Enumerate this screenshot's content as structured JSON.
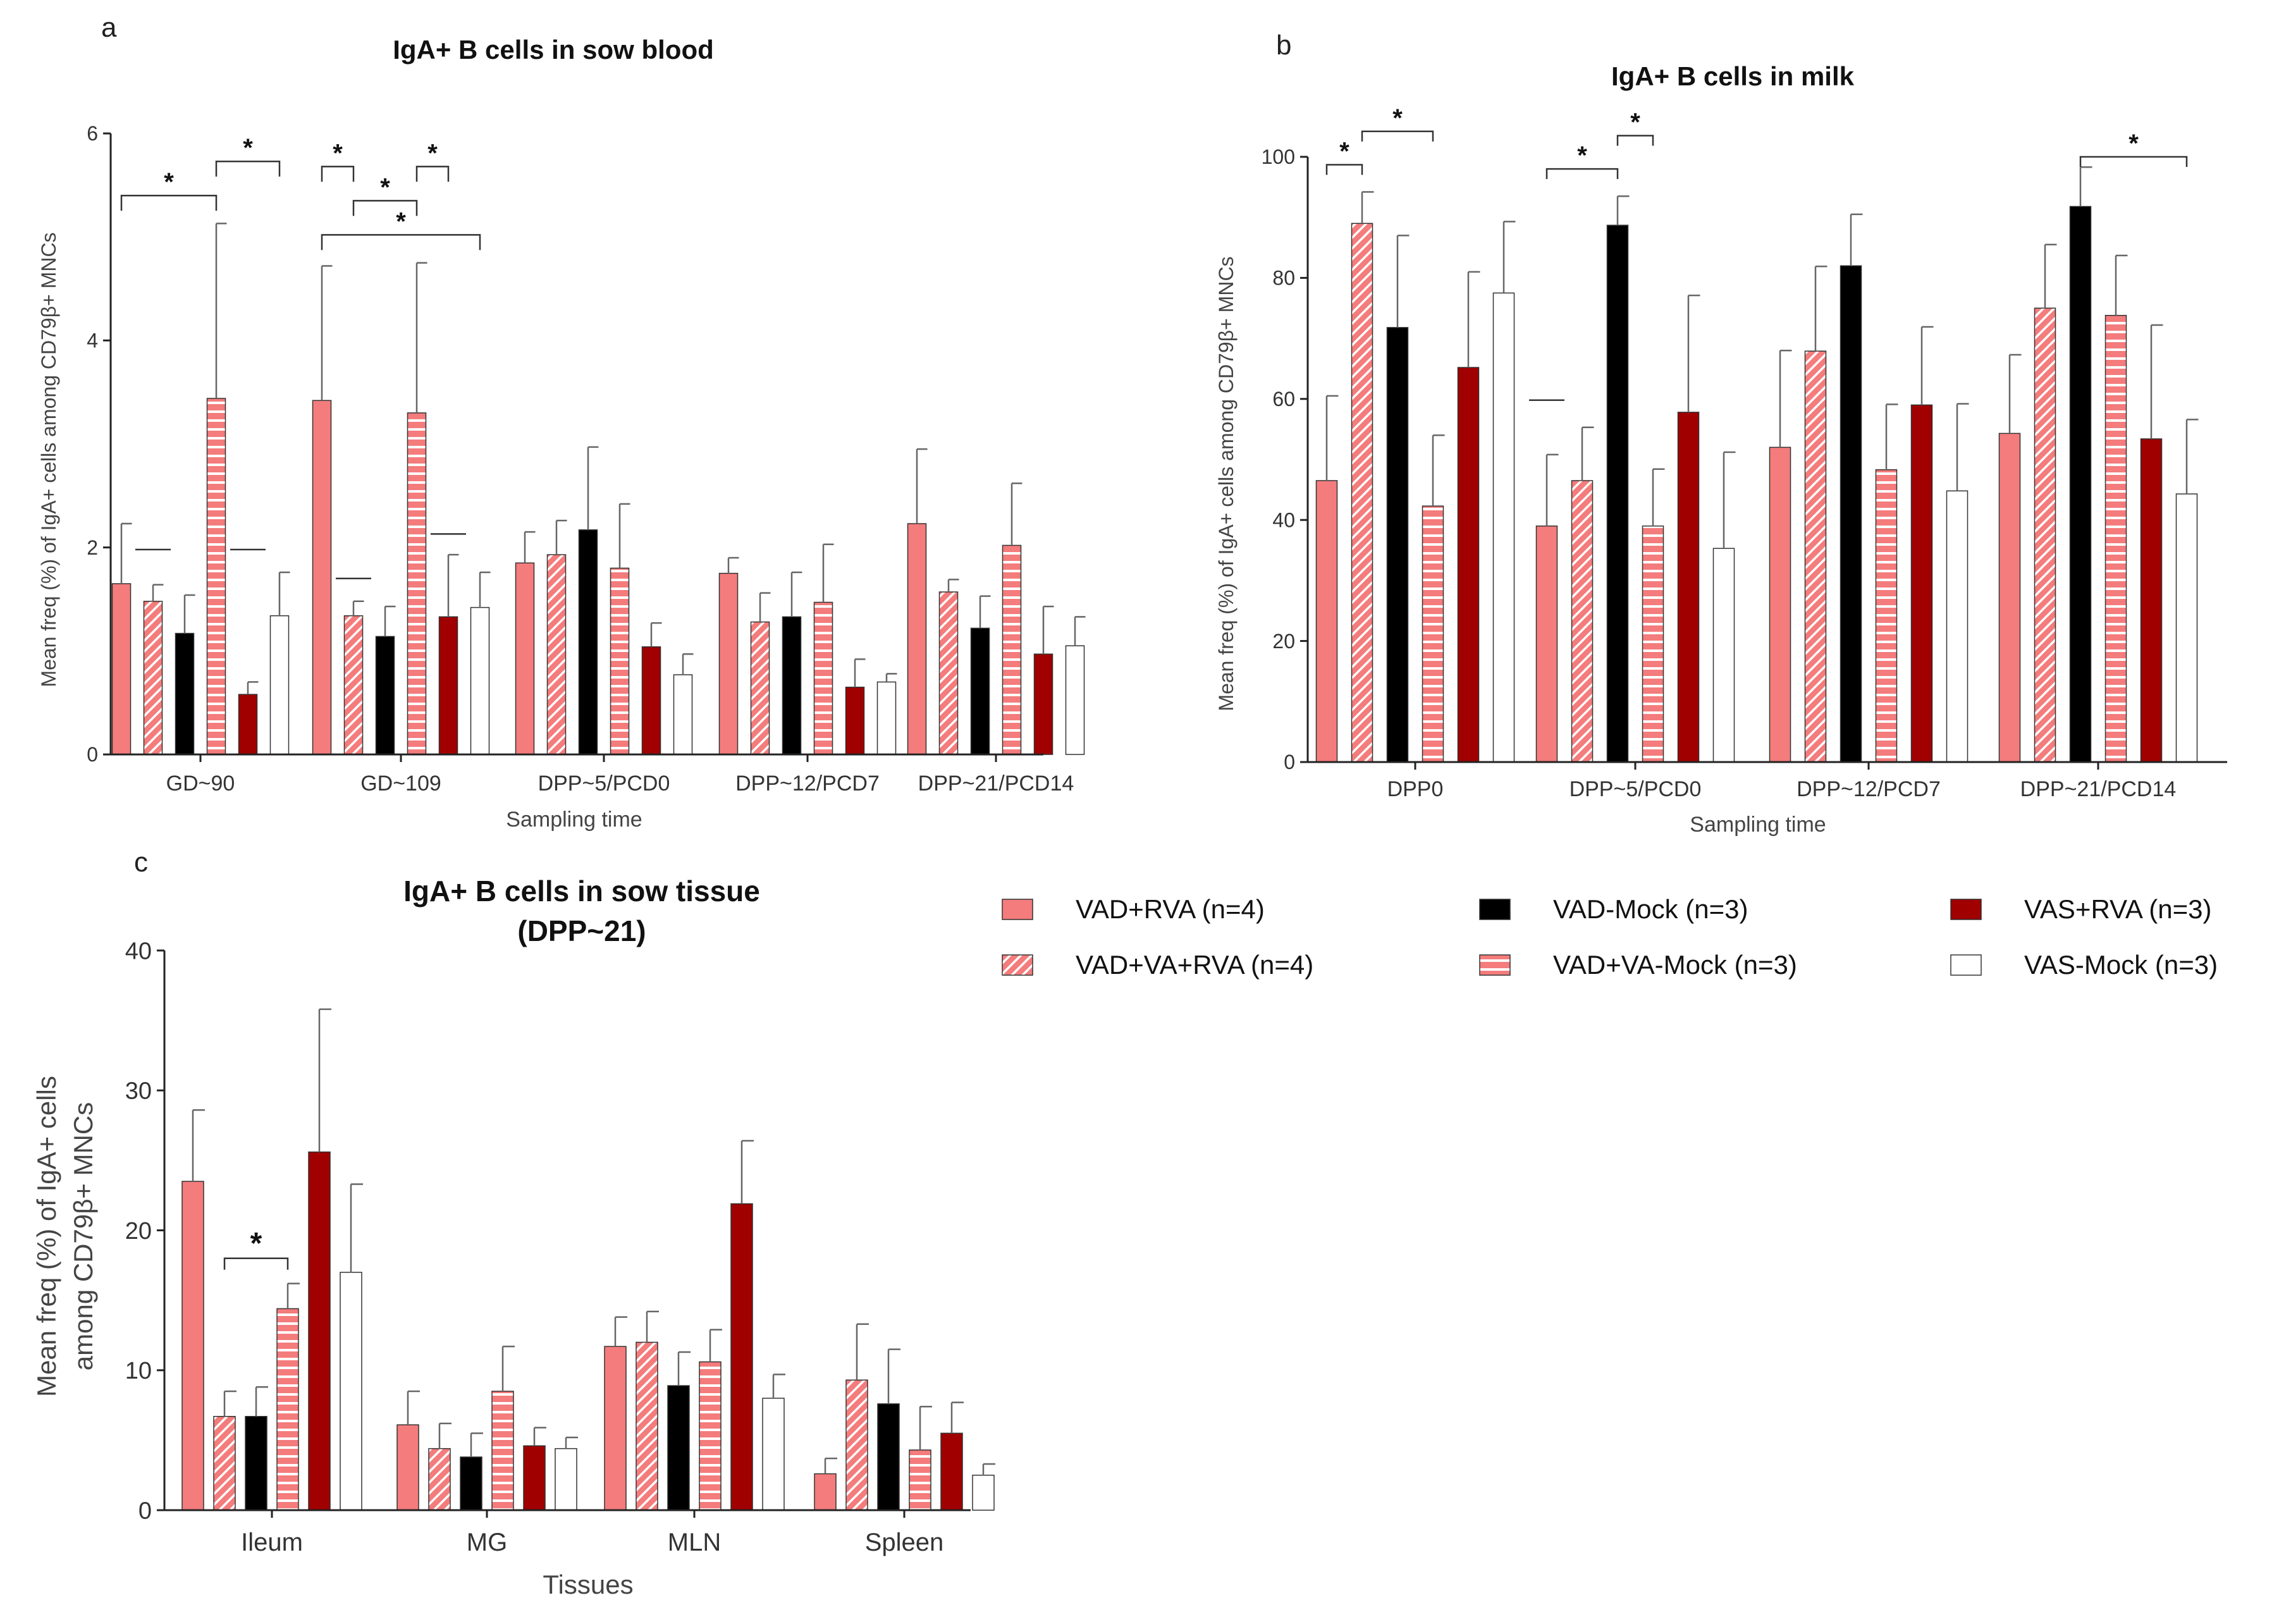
{
  "colors": {
    "salmon": "#F47C7C",
    "black": "#000000",
    "darkred": "#A00000",
    "white": "#FFFFFF",
    "edge": "#333333",
    "error": "#666666"
  },
  "legend": [
    {
      "label": "VAD+RVA (n=4)",
      "fill": "salmon",
      "pattern": "solid"
    },
    {
      "label": "VAD-Mock (n=3)",
      "fill": "black",
      "pattern": "solid"
    },
    {
      "label": "VAS+RVA (n=3)",
      "fill": "darkred",
      "pattern": "solid"
    },
    {
      "label": "VAD+VA+RVA (n=4)",
      "fill": "salmon",
      "pattern": "diagonal"
    },
    {
      "label": "VAD+VA-Mock (n=3)",
      "fill": "salmon",
      "pattern": "horizontal"
    },
    {
      "label": "VAS-Mock (n=3)",
      "fill": "white",
      "pattern": "solid"
    }
  ],
  "chart_data": [
    {
      "panel": "a",
      "type": "bar",
      "title": "IgA+ B cells in sow blood",
      "xlabel": "Sampling time",
      "ylabel": "Mean freq (%) of IgA+ cells among CD79β+ MNCs",
      "ylim": [
        0,
        6
      ],
      "yticks": [
        0,
        2,
        4,
        6
      ],
      "categories": [
        "GD~90",
        "GD~109",
        "DPP~5/PCD0",
        "DPP~12/PCD7",
        "DPP~21/PCD14"
      ],
      "series": [
        {
          "name": "VAD+RVA (n=4)",
          "values": [
            1.65,
            3.42,
            1.85,
            1.75,
            2.23
          ],
          "errors": [
            0.58,
            1.3,
            0.3,
            0.15,
            0.72
          ]
        },
        {
          "name": "VAD+VA+RVA (n=4)",
          "values": [
            1.48,
            1.34,
            1.93,
            1.28,
            1.57
          ],
          "errors": [
            0.16,
            0.14,
            0.33,
            0.28,
            0.12
          ]
        },
        {
          "name": "VAD-Mock (n=3)",
          "values": [
            1.17,
            1.14,
            2.17,
            1.33,
            1.22
          ],
          "errors": [
            0.37,
            0.29,
            0.8,
            0.43,
            0.31
          ]
        },
        {
          "name": "VAD+VA-Mock (n=3)",
          "values": [
            3.44,
            3.3,
            1.8,
            1.47,
            2.02
          ],
          "errors": [
            1.69,
            1.45,
            0.62,
            0.56,
            0.6
          ]
        },
        {
          "name": "VAS+RVA (n=3)",
          "values": [
            0.58,
            1.33,
            1.04,
            0.65,
            0.97
          ],
          "errors": [
            0.12,
            0.6,
            0.23,
            0.27,
            0.46
          ]
        },
        {
          "name": "VAS-Mock (n=3)",
          "values": [
            1.34,
            1.42,
            0.77,
            0.7,
            1.05
          ],
          "errors": [
            0.42,
            0.34,
            0.2,
            0.08,
            0.28
          ]
        }
      ],
      "significance": [
        {
          "from": [
            0,
            0
          ],
          "to": [
            0,
            3
          ],
          "label": "*"
        },
        {
          "from": [
            0,
            3
          ],
          "to": [
            0,
            5
          ],
          "label": "*"
        },
        {
          "from": [
            1,
            0
          ],
          "to": [
            1,
            5
          ],
          "label": "*"
        },
        {
          "from": [
            1,
            1
          ],
          "to": [
            1,
            3
          ],
          "label": "*"
        },
        {
          "from": [
            1,
            0
          ],
          "to": [
            1,
            1
          ],
          "label": "*"
        },
        {
          "from": [
            1,
            3
          ],
          "to": [
            1,
            4
          ],
          "label": "*"
        }
      ],
      "dashes": [
        {
          "group": 0,
          "bar": 1,
          "value": 1.98
        },
        {
          "group": 0,
          "bar": 4,
          "value": 1.98
        },
        {
          "group": 1,
          "bar": 1,
          "value": 1.7
        },
        {
          "group": 1,
          "bar": 4,
          "value": 2.13
        }
      ]
    },
    {
      "panel": "b",
      "type": "bar",
      "title": "IgA+ B cells in milk",
      "xlabel": "Sampling time",
      "ylabel": "Mean freq (%) of IgA+ cells among CD79β+ MNCs",
      "ylim": [
        0,
        100
      ],
      "yticks": [
        0,
        20,
        40,
        60,
        80,
        100
      ],
      "categories": [
        "DPP0",
        "DPP~5/PCD0",
        "DPP~12/PCD7",
        "DPP~21/PCD14"
      ],
      "series": [
        {
          "name": "VAD+RVA (n=4)",
          "values": [
            46.5,
            39,
            52,
            54.3
          ],
          "errors": [
            14,
            11.8,
            16,
            13
          ]
        },
        {
          "name": "VAD+VA+RVA (n=4)",
          "values": [
            89,
            46.5,
            67.9,
            75
          ],
          "errors": [
            5.2,
            8.8,
            14,
            10.5
          ]
        },
        {
          "name": "VAD-Mock (n=3)",
          "values": [
            71.8,
            88.7,
            82,
            91.8
          ],
          "errors": [
            15.2,
            4.8,
            8.5,
            6.5
          ]
        },
        {
          "name": "VAD+VA-Mock (n=3)",
          "values": [
            42.3,
            39,
            48.3,
            73.8
          ],
          "errors": [
            11.7,
            9.4,
            10.8,
            9.9
          ]
        },
        {
          "name": "VAS+RVA (n=3)",
          "values": [
            65.2,
            57.8,
            59,
            53.4
          ],
          "errors": [
            15.8,
            19.3,
            12.9,
            18.8
          ]
        },
        {
          "name": "VAS-Mock (n=3)",
          "values": [
            77.5,
            35.3,
            44.8,
            44.3
          ],
          "errors": [
            11.8,
            15.9,
            14.4,
            12.3
          ]
        }
      ],
      "significance": [
        {
          "from": [
            0,
            0
          ],
          "to": [
            0,
            1
          ],
          "label": "*"
        },
        {
          "from": [
            0,
            1
          ],
          "to": [
            0,
            3
          ],
          "label": "*"
        },
        {
          "from": [
            1,
            0
          ],
          "to": [
            1,
            2
          ],
          "label": "*"
        },
        {
          "from": [
            1,
            2
          ],
          "to": [
            1,
            3
          ],
          "label": "*"
        },
        {
          "from": [
            3,
            2
          ],
          "to": [
            3,
            5
          ],
          "label": "*"
        }
      ],
      "dashes": [
        {
          "group": 1,
          "bar": 0,
          "value": 59.8
        }
      ]
    },
    {
      "panel": "c",
      "type": "bar",
      "title": "IgA+ B cells in sow tissue",
      "subtitle": "(DPP~21)",
      "xlabel": "Tissues",
      "ylabel": "Mean freq (%) of IgA+ cells",
      "ylabel2": "among CD79β+ MNCs",
      "ylim": [
        0,
        40
      ],
      "yticks": [
        0,
        10,
        20,
        30,
        40
      ],
      "categories": [
        "Ileum",
        "MG",
        "MLN",
        "Spleen"
      ],
      "series": [
        {
          "name": "VAD+RVA (n=4)",
          "values": [
            23.5,
            6.1,
            11.7,
            2.6
          ],
          "errors": [
            5.1,
            2.4,
            2.1,
            1.1
          ]
        },
        {
          "name": "VAD+VA+RVA (n=4)",
          "values": [
            6.7,
            4.4,
            12,
            9.3
          ],
          "errors": [
            1.8,
            1.8,
            2.2,
            4
          ]
        },
        {
          "name": "VAD-Mock (n=3)",
          "values": [
            6.7,
            3.8,
            8.9,
            7.6
          ],
          "errors": [
            2.1,
            1.7,
            2.4,
            3.9
          ]
        },
        {
          "name": "VAD+VA-Mock (n=3)",
          "values": [
            14.4,
            8.5,
            10.6,
            4.3
          ],
          "errors": [
            1.8,
            3.2,
            2.3,
            3.1
          ]
        },
        {
          "name": "VAS+RVA (n=3)",
          "values": [
            25.6,
            4.6,
            21.9,
            5.5
          ],
          "errors": [
            10.2,
            1.3,
            4.5,
            2.2
          ]
        },
        {
          "name": "VAS-Mock (n=3)",
          "values": [
            17,
            4.4,
            8,
            2.5
          ],
          "errors": [
            6.3,
            0.8,
            1.7,
            0.8
          ]
        }
      ],
      "significance": [
        {
          "from": [
            0,
            1
          ],
          "to": [
            0,
            3
          ],
          "label": "*"
        }
      ],
      "dashes": []
    }
  ]
}
